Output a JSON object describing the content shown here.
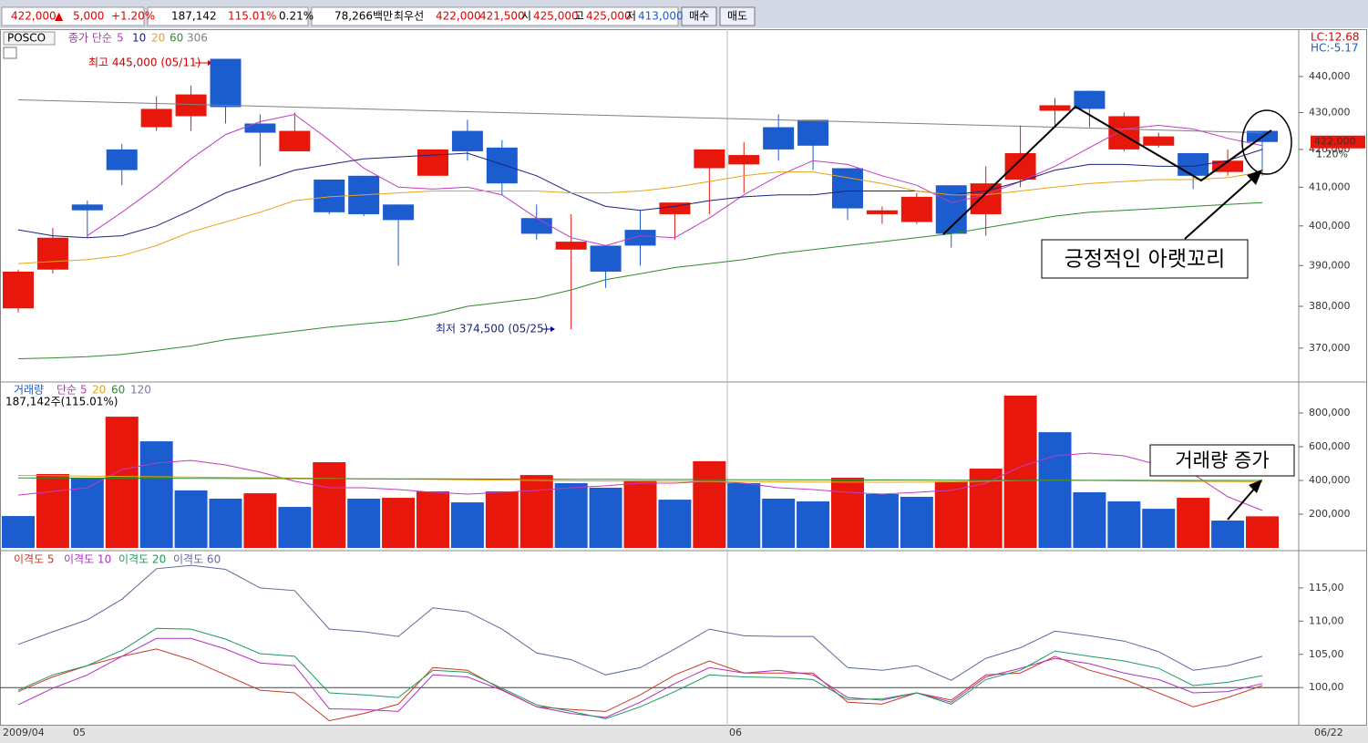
{
  "toolbar": {
    "price": "422,000",
    "arrow": "▲",
    "change": "5,000",
    "change_pct": "+1.20%",
    "volume": "187,142",
    "volume_ratio": "115.01%",
    "turnover": "0.21%",
    "amount": "78,266백만",
    "best_label": "최우선",
    "best_ask": "422,000",
    "best_bid": "421,500",
    "open_label": "시",
    "open": "425,000",
    "high_label": "고",
    "high": "425,000",
    "low_label": "저",
    "low": "413,000",
    "buy": "매수",
    "sell": "매도"
  },
  "chart_data": [
    {
      "type": "candlestick",
      "title": "POSCO",
      "ma_label": "종가 단순",
      "log_scale": true,
      "ylim": [
        362300,
        452700
      ],
      "yticks": [
        {
          "value": 370000,
          "label": "370,000"
        },
        {
          "value": 380000,
          "label": "380,000"
        },
        {
          "value": 390000,
          "label": "390,000"
        },
        {
          "value": 400000,
          "label": "400,000"
        },
        {
          "value": 410000,
          "label": "410,000"
        },
        {
          "value": 420000,
          "label": "420,000"
        },
        {
          "value": 430000,
          "label": "430,000"
        },
        {
          "value": 440000,
          "label": "440,000"
        }
      ],
      "up_color": "#e8170b",
      "down_color": "#1b5ccf",
      "open": [
        379500,
        389000,
        405500,
        420000,
        426000,
        429000,
        445000,
        427000,
        419500,
        412000,
        413000,
        405500,
        413000,
        425000,
        420500,
        402000,
        394000,
        395000,
        399000,
        403000,
        415000,
        416000,
        426000,
        428000,
        415000,
        403000,
        401000,
        410500,
        403000,
        412000,
        430500,
        436000,
        420000,
        421000,
        419000,
        414000,
        425000
      ],
      "high": [
        389000,
        399500,
        406500,
        421500,
        434500,
        437500,
        445000,
        429500,
        430000,
        412000,
        413000,
        405500,
        420000,
        428000,
        422500,
        405500,
        403000,
        395000,
        404000,
        406000,
        420000,
        422000,
        429500,
        428000,
        415000,
        405000,
        408500,
        410500,
        415500,
        426500,
        434000,
        436000,
        430000,
        424500,
        419000,
        420000,
        425000
      ],
      "low": [
        378500,
        388000,
        397000,
        410500,
        425000,
        425000,
        427000,
        415500,
        419500,
        403000,
        402500,
        390000,
        413000,
        417000,
        408000,
        396500,
        374500,
        384500,
        390000,
        396500,
        403000,
        408500,
        417000,
        414500,
        401500,
        400500,
        400500,
        394500,
        397500,
        410000,
        426000,
        426000,
        419500,
        420500,
        409500,
        413000,
        413000
      ],
      "close": [
        388500,
        397000,
        404000,
        414500,
        431000,
        435000,
        431500,
        424500,
        425000,
        403500,
        403000,
        401500,
        420000,
        419500,
        411000,
        398000,
        396000,
        388500,
        395000,
        406000,
        420000,
        418500,
        420000,
        421000,
        404500,
        404000,
        407500,
        398000,
        411000,
        419000,
        432000,
        431000,
        429000,
        423500,
        413000,
        417000,
        422000
      ],
      "series": [
        {
          "name": "5",
          "color": "#c03cc0",
          "values": [
            null,
            null,
            397500,
            403500,
            410000,
            417500,
            424000,
            427500,
            429500,
            422500,
            415000,
            410000,
            409500,
            410000,
            408000,
            402000,
            397000,
            395000,
            397500,
            397000,
            402000,
            408000,
            413000,
            417000,
            416000,
            413000,
            410500,
            406000,
            408000,
            411500,
            415500,
            420500,
            425500,
            426500,
            425500,
            423000,
            421000
          ]
        },
        {
          "name": "10",
          "color": "#1a237e",
          "values": [
            399000,
            397500,
            397000,
            397500,
            400000,
            404000,
            408500,
            411500,
            414500,
            416000,
            417500,
            418000,
            418500,
            419000,
            416000,
            413000,
            408500,
            405000,
            404000,
            405000,
            406500,
            407500,
            408000,
            408000,
            409000,
            409000,
            409000,
            408000,
            409000,
            411500,
            414500,
            416000,
            416000,
            415500,
            415500,
            417000,
            420000
          ]
        },
        {
          "name": "20",
          "color": "#e8a317",
          "values": [
            390500,
            391000,
            391500,
            392500,
            395000,
            398500,
            401000,
            403500,
            406500,
            407500,
            408000,
            408500,
            409000,
            409000,
            409000,
            409000,
            408500,
            408500,
            409000,
            410000,
            411500,
            413000,
            414000,
            414000,
            412500,
            411000,
            409000,
            408000,
            408000,
            409000,
            410000,
            411000,
            411500,
            412000,
            412000,
            412500,
            414000
          ]
        },
        {
          "name": "60",
          "color": "#2e8b2e",
          "values": [
            367500,
            367700,
            368000,
            368500,
            369500,
            370500,
            372000,
            373000,
            374000,
            375000,
            375800,
            376500,
            378000,
            380000,
            381000,
            382000,
            384000,
            386500,
            388000,
            389500,
            390500,
            391500,
            393000,
            394000,
            395000,
            396000,
            397000,
            398000,
            399500,
            401000,
            402500,
            403500,
            404000,
            404500,
            405000,
            405500,
            406000
          ]
        },
        {
          "name": "306",
          "color": "#808080",
          "values": [
            433500,
            433250,
            433000,
            432750,
            432500,
            432250,
            432000,
            431750,
            431500,
            431250,
            431000,
            430750,
            430500,
            430250,
            430000,
            429750,
            429500,
            429250,
            429000,
            428750,
            428500,
            428250,
            428000,
            427750,
            427500,
            427250,
            427000,
            426750,
            426500,
            426250,
            426000,
            425750,
            425500,
            425250,
            425000,
            424750,
            424500
          ]
        }
      ],
      "indicators": [
        "LC:12.68",
        "HC:-5.17"
      ],
      "last_price": {
        "value": 422000,
        "label": "422,000"
      },
      "last_change": "1.20%",
      "annotations": [
        "최고 445,000 (05/11)",
        "최저 374,500 (05/25)",
        "긍정적인 아랫꼬리"
      ]
    },
    {
      "type": "bar",
      "title": "거래량",
      "ma_label": "단순",
      "ylim": [
        0,
        967600
      ],
      "yticks": [
        {
          "value": 200000,
          "label": "200,000"
        },
        {
          "value": 400000,
          "label": "400,000"
        },
        {
          "value": 600000,
          "label": "600,000"
        },
        {
          "value": 800000,
          "label": "800,000"
        }
      ],
      "values": [
        189000,
        438000,
        416000,
        778000,
        632000,
        341000,
        292000,
        324000,
        243000,
        508000,
        292000,
        297000,
        335000,
        270000,
        335000,
        432000,
        384000,
        357000,
        400000,
        286000,
        514000,
        384000,
        292000,
        276000,
        416000,
        319000,
        303000,
        395000,
        470000,
        903000,
        686000,
        330000,
        276000,
        232000,
        297000,
        162000,
        187142
      ],
      "colors": [
        "#1b5ccf",
        "#e8170b",
        "#1b5ccf",
        "#e8170b",
        "#1b5ccf",
        "#1b5ccf",
        "#1b5ccf",
        "#e8170b",
        "#1b5ccf",
        "#e8170b",
        "#1b5ccf",
        "#e8170b",
        "#e8170b",
        "#1b5ccf",
        "#e8170b",
        "#e8170b",
        "#1b5ccf",
        "#1b5ccf",
        "#e8170b",
        "#1b5ccf",
        "#e8170b",
        "#1b5ccf",
        "#1b5ccf",
        "#1b5ccf",
        "#e8170b",
        "#1b5ccf",
        "#1b5ccf",
        "#e8170b",
        "#e8170b",
        "#e8170b",
        "#1b5ccf",
        "#1b5ccf",
        "#1b5ccf",
        "#1b5ccf",
        "#e8170b",
        "#1b5ccf",
        "#e8170b"
      ],
      "series": [
        {
          "name": "5",
          "color": "#c03cc0",
          "values": [
            313000,
            335000,
            357000,
            465000,
            503000,
            519000,
            492000,
            449000,
            395000,
            357000,
            357000,
            346000,
            330000,
            319000,
            330000,
            341000,
            357000,
            368000,
            384000,
            384000,
            395000,
            384000,
            357000,
            346000,
            330000,
            319000,
            330000,
            341000,
            384000,
            481000,
            546000,
            562000,
            546000,
            492000,
            438000,
            303000,
            222000
          ]
        },
        {
          "name": "20",
          "color": "#e8a317",
          "values": [
            430000,
            428000,
            426000,
            424000,
            422000,
            420000,
            418000,
            416000,
            414000,
            412000,
            410000,
            408000,
            406000,
            404000,
            402000,
            400000,
            398000,
            397000,
            396000,
            395000,
            394000,
            393000,
            392000,
            391000,
            390000,
            389000,
            390000,
            392000,
            395000,
            400000,
            402000,
            400000,
            398000,
            396000,
            394000,
            393000,
            392000
          ]
        },
        {
          "name": "60",
          "color": "#2e8b2e",
          "values": [
            415000,
            414500,
            414000,
            413500,
            413000,
            412500,
            412000,
            411500,
            411000,
            410500,
            410000,
            409500,
            409000,
            408500,
            408000,
            407500,
            407000,
            406500,
            406000,
            405500,
            405000,
            404500,
            404000,
            403500,
            403000,
            402500,
            402000,
            401500,
            401000,
            401000,
            401000,
            400500,
            400500,
            400000,
            400000,
            400000,
            400000
          ]
        },
        {
          "name": "120",
          "color": "#7a7a9a",
          "values": [
            null,
            null,
            null,
            null,
            null,
            null,
            null,
            null,
            null,
            null,
            null,
            null,
            null,
            null,
            null,
            null,
            null,
            null,
            null,
            null,
            null,
            null,
            null,
            null,
            null,
            null,
            null,
            null,
            null,
            null,
            null,
            null,
            null,
            null,
            null,
            null,
            null
          ]
        }
      ],
      "value_label": "187,142주(115.01%)",
      "annotation": "거래량 증가"
    },
    {
      "type": "line",
      "ylim": [
        94.4,
        120.2
      ],
      "yticks": [
        {
          "value": 100,
          "label": "100,00"
        },
        {
          "value": 105,
          "label": "105,00"
        },
        {
          "value": 110,
          "label": "110,00"
        },
        {
          "value": 115,
          "label": "115,00"
        }
      ],
      "reference_line": 100,
      "series": [
        {
          "name": "이격도 5",
          "color": "#c83a2a",
          "values": [
            99.4,
            101.6,
            103.3,
            104.7,
            105.8,
            104.2,
            101.9,
            99.6,
            99.2,
            95.0,
            96.1,
            97.5,
            103.0,
            102.6,
            99.7,
            97.1,
            96.7,
            96.4,
            98.9,
            101.9,
            104.0,
            102.2,
            102.2,
            102.2,
            97.8,
            97.5,
            99.2,
            98.1,
            101.9,
            102.2,
            104.7,
            102.6,
            101.2,
            99.2,
            97.1,
            98.5,
            100.3
          ]
        },
        {
          "name": "이격도 10",
          "color": "#b030c0",
          "values": [
            97.4,
            99.9,
            101.9,
            104.7,
            107.4,
            107.4,
            105.8,
            103.7,
            103.3,
            96.8,
            96.7,
            96.4,
            101.9,
            101.6,
            99.6,
            97.1,
            96.1,
            95.5,
            97.8,
            100.6,
            103.0,
            102.2,
            102.6,
            101.9,
            98.5,
            98.1,
            99.2,
            97.8,
            101.6,
            102.9,
            104.4,
            103.6,
            102.2,
            101.2,
            99.2,
            99.4,
            100.6
          ]
        },
        {
          "name": "이격도 20",
          "color": "#1e9a5a",
          "values": [
            99.6,
            101.9,
            103.3,
            105.6,
            108.9,
            108.8,
            107.3,
            105.1,
            104.7,
            99.2,
            98.9,
            98.5,
            102.6,
            102.3,
            99.9,
            97.4,
            96.4,
            95.3,
            97.1,
            99.4,
            101.9,
            101.6,
            101.5,
            101.2,
            98.2,
            98.3,
            99.2,
            97.5,
            101.2,
            102.6,
            105.5,
            104.7,
            104.0,
            102.9,
            100.3,
            100.8,
            101.8
          ]
        },
        {
          "name": "이격도 60",
          "color": "#5a6a9a",
          "values": [
            106.5,
            108.4,
            110.2,
            113.3,
            117.9,
            118.4,
            117.8,
            115.0,
            114.6,
            108.8,
            108.4,
            107.7,
            112.0,
            111.4,
            108.8,
            105.2,
            104.2,
            101.9,
            103.0,
            105.8,
            108.8,
            107.8,
            107.7,
            107.7,
            103.0,
            102.6,
            103.3,
            101.1,
            104.4,
            106.0,
            108.5,
            107.8,
            107.0,
            105.4,
            102.6,
            103.3,
            104.7
          ]
        }
      ],
      "period_labels": [
        "2009/04",
        "05",
        "06",
        "06/22"
      ]
    }
  ]
}
